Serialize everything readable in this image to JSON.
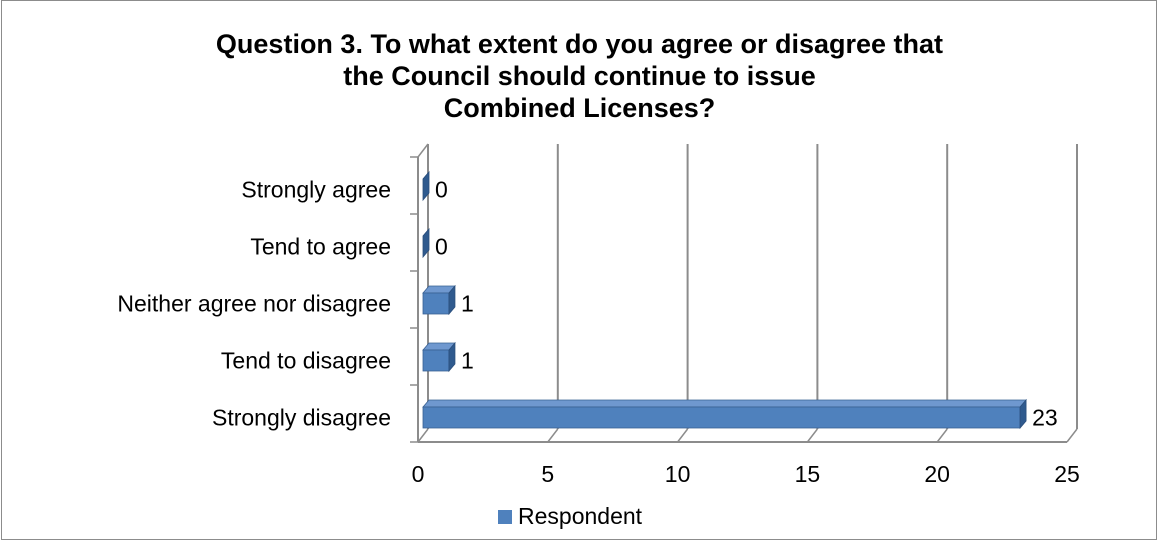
{
  "chart_data": {
    "type": "bar",
    "orientation": "horizontal",
    "three_d": true,
    "title": [
      "Question 3. To what extent do you agree or disagree that",
      "the Council should continue to issue",
      "Combined Licenses?"
    ],
    "categories": [
      "Strongly agree",
      "Tend to agree",
      "Neither agree nor disagree",
      "Tend to disagree",
      "Strongly disagree"
    ],
    "series": [
      {
        "name": "Respondent",
        "values": [
          0,
          0,
          1,
          1,
          23
        ],
        "color": "#4f81bd"
      }
    ],
    "xlim": [
      0,
      25
    ],
    "x_ticks": [
      "0",
      "5",
      "10",
      "15",
      "20",
      "25"
    ],
    "grid": true,
    "legend_position": "bottom"
  }
}
